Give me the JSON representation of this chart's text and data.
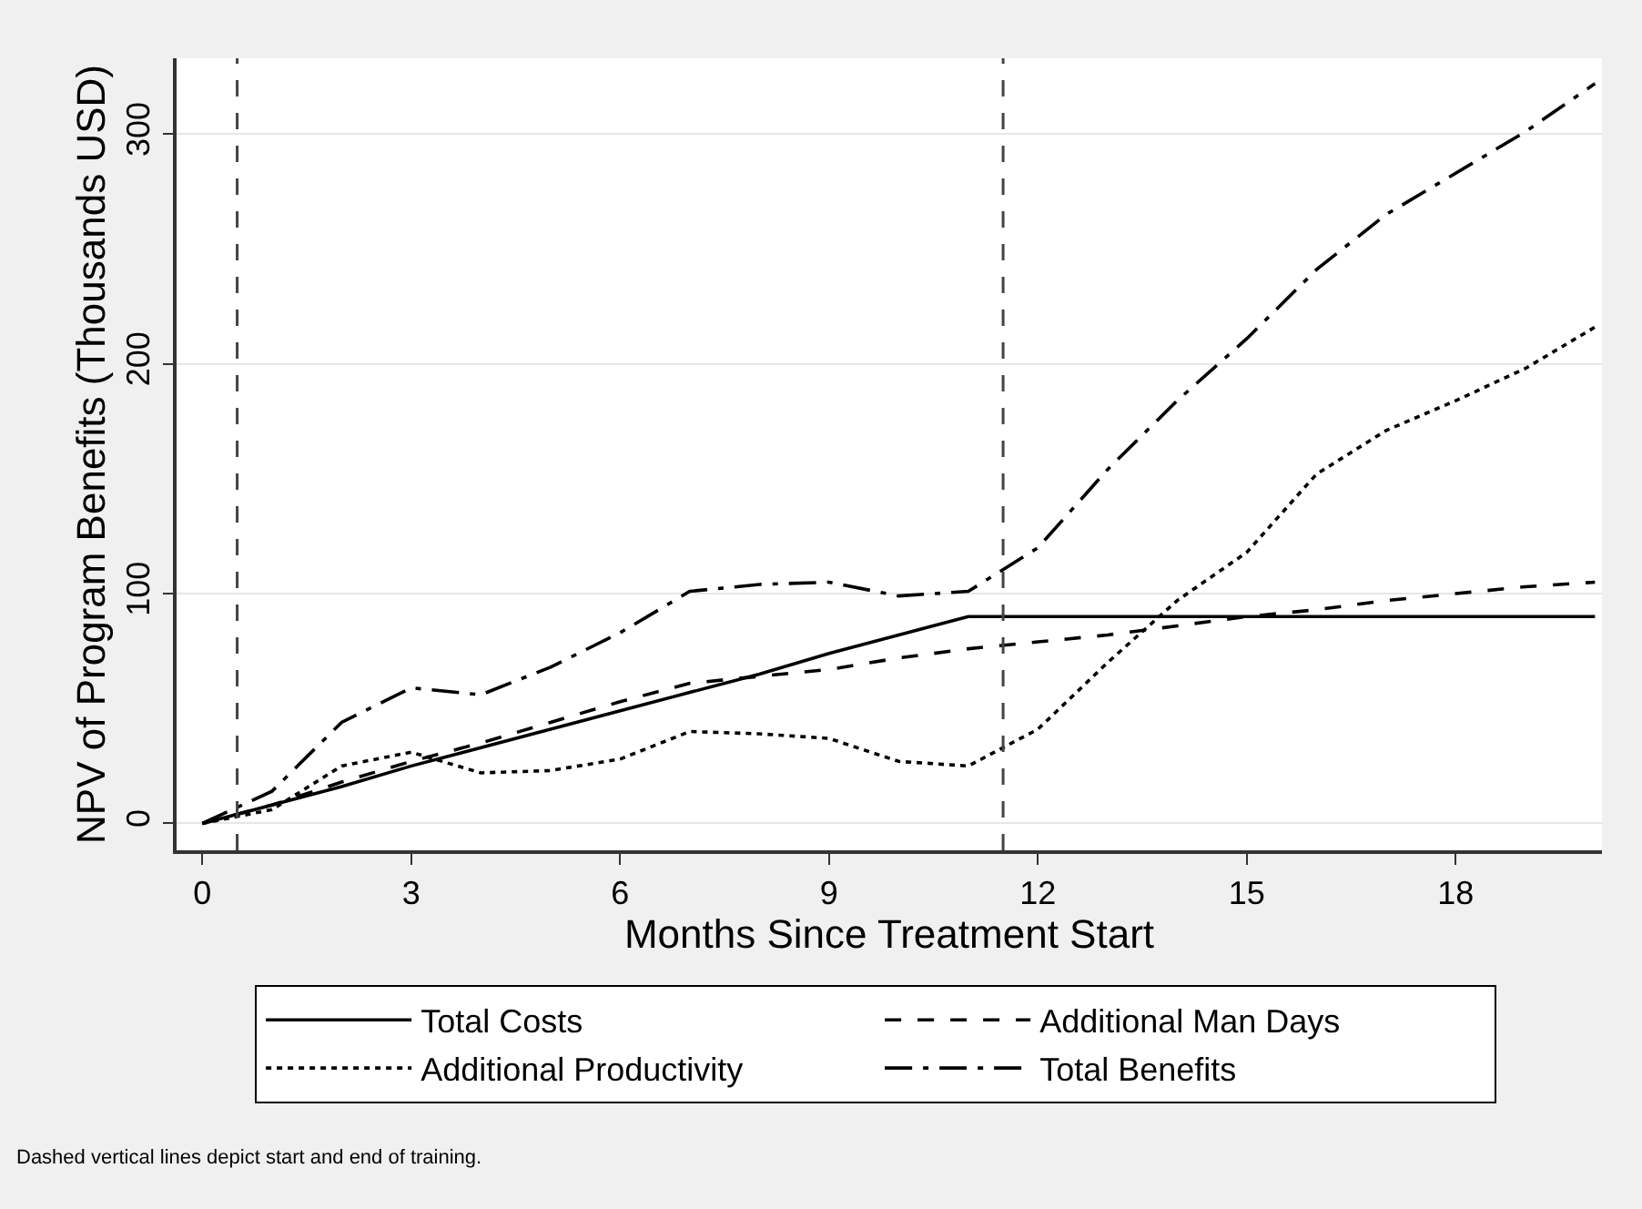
{
  "chart_data": {
    "type": "line",
    "xlabel": "Months Since Treatment Start",
    "ylabel": "NPV of Program Benefits (Thousands USD)",
    "x": [
      0,
      1,
      2,
      3,
      4,
      5,
      6,
      7,
      8,
      9,
      10,
      11,
      12,
      13,
      14,
      15,
      16,
      17,
      18,
      19,
      20
    ],
    "series": [
      {
        "name": "Total Costs",
        "color": "#000000",
        "line_style": "solid",
        "values": [
          0,
          8,
          16,
          25,
          33,
          41,
          49,
          57,
          65,
          74,
          82,
          90,
          90,
          90,
          90,
          90,
          90,
          90,
          90,
          90,
          90
        ]
      },
      {
        "name": "Additional Man Days",
        "color": "#000000",
        "line_style": "dashed",
        "values": [
          0,
          8,
          18,
          27,
          35,
          44,
          53,
          61,
          64,
          67,
          72,
          76,
          79,
          82,
          86,
          90,
          93,
          97,
          100,
          103,
          105
        ]
      },
      {
        "name": "Additional Productivity",
        "color": "#000000",
        "line_style": "dotted",
        "values": [
          0,
          6,
          25,
          31,
          22,
          23,
          28,
          40,
          39,
          37,
          27,
          25,
          41,
          70,
          97,
          118,
          152,
          171,
          184,
          198,
          216
        ]
      },
      {
        "name": "Total Benefits",
        "color": "#000000",
        "line_style": "dashdot",
        "values": [
          0,
          14,
          44,
          59,
          56,
          68,
          83,
          101,
          104,
          105,
          99,
          101,
          120,
          154,
          184,
          211,
          241,
          265,
          283,
          301,
          322
        ]
      }
    ],
    "xlim": [
      -0.37,
      20.1
    ],
    "ylim": [
      -11.7,
      333
    ],
    "xticks": [
      0,
      3,
      6,
      9,
      12,
      15,
      18
    ],
    "yticks": [
      0,
      100,
      200,
      300
    ],
    "grid": "y",
    "legend": "bottom",
    "marker": "none",
    "ref_lines": [
      {
        "axis": "x",
        "value": 0.5,
        "color": "#444444",
        "line_style": "dashed"
      },
      {
        "axis": "x",
        "value": 11.5,
        "color": "#444444",
        "line_style": "dashed"
      }
    ],
    "annotations": [
      "Dashed vertical lines depict start and end of training."
    ]
  }
}
